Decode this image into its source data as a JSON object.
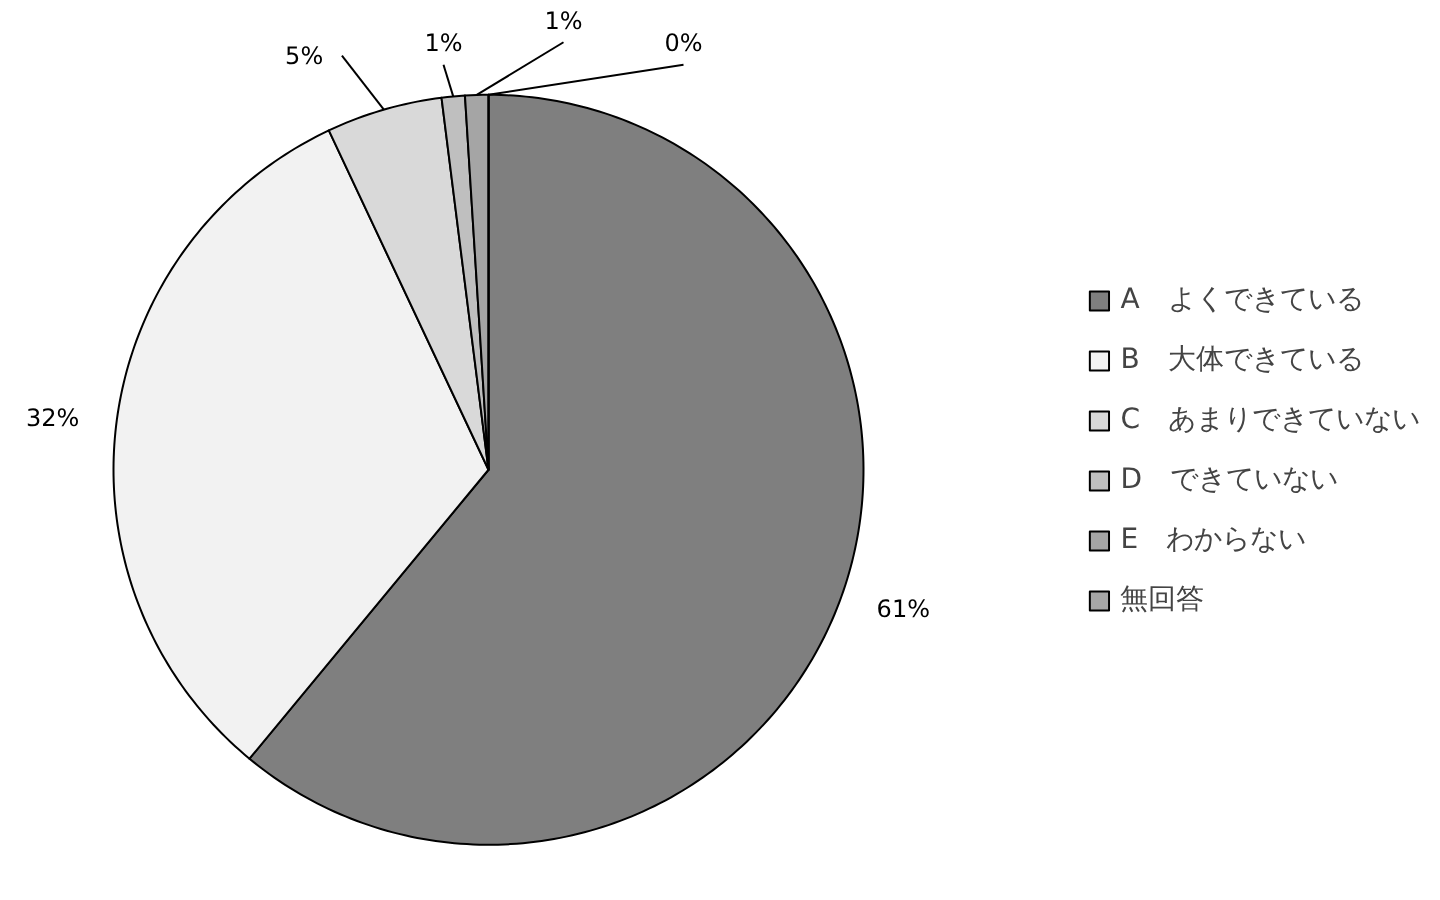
{
  "chart_data": {
    "type": "pie",
    "categories": [
      "A　よくできている",
      "B　大体できている",
      "C　あまりできていない",
      "D　できていない",
      "E　わからない",
      "無回答"
    ],
    "values": [
      61,
      32,
      5,
      1,
      1,
      0
    ],
    "value_labels": [
      "61%",
      "32%",
      "5%",
      "1%",
      "1%",
      "0%"
    ],
    "colors": [
      "#7f7f7f",
      "#f2f2f2",
      "#d9d9d9",
      "#bfbfbf",
      "#a5a5a5",
      "#a6a6a6"
    ],
    "legend": "right"
  }
}
